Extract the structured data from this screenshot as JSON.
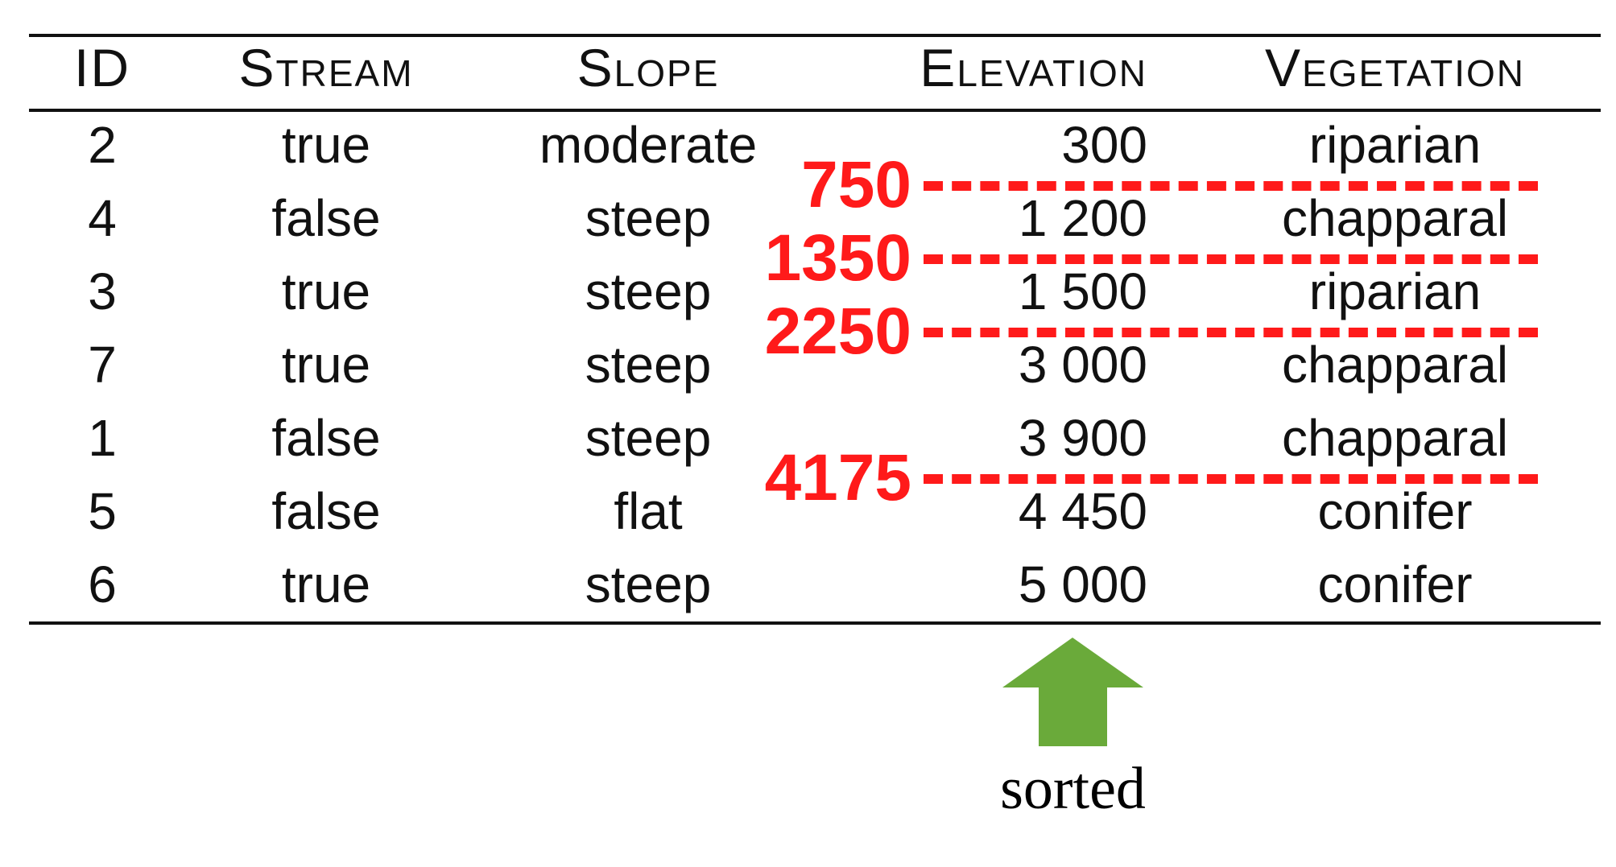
{
  "table": {
    "headers": [
      "ID",
      "Stream",
      "Slope",
      "Elevation",
      "Vegetation"
    ],
    "rows": [
      {
        "id": "2",
        "stream": "true",
        "slope": "moderate",
        "elevation": "300",
        "vegetation": "riparian"
      },
      {
        "id": "4",
        "stream": "false",
        "slope": "steep",
        "elevation": "1 200",
        "vegetation": "chapparal"
      },
      {
        "id": "3",
        "stream": "true",
        "slope": "steep",
        "elevation": "1 500",
        "vegetation": "riparian"
      },
      {
        "id": "7",
        "stream": "true",
        "slope": "steep",
        "elevation": "3 000",
        "vegetation": "chapparal"
      },
      {
        "id": "1",
        "stream": "false",
        "slope": "steep",
        "elevation": "3 900",
        "vegetation": "chapparal"
      },
      {
        "id": "5",
        "stream": "false",
        "slope": "flat",
        "elevation": "4 450",
        "vegetation": "conifer"
      },
      {
        "id": "6",
        "stream": "true",
        "slope": "steep",
        "elevation": "5 000",
        "vegetation": "conifer"
      }
    ]
  },
  "thresholds": [
    {
      "label": "750",
      "between_rows": [
        0,
        1
      ]
    },
    {
      "label": "1350",
      "between_rows": [
        1,
        2
      ]
    },
    {
      "label": "2250",
      "between_rows": [
        2,
        3
      ]
    },
    {
      "label": "4175",
      "between_rows": [
        4,
        5
      ]
    }
  ],
  "annotation": {
    "caption": "sorted",
    "arrow_color": "#6aaa3a"
  },
  "colors": {
    "threshold": "#ff1a1a",
    "text": "#111111",
    "rule": "#111111"
  }
}
